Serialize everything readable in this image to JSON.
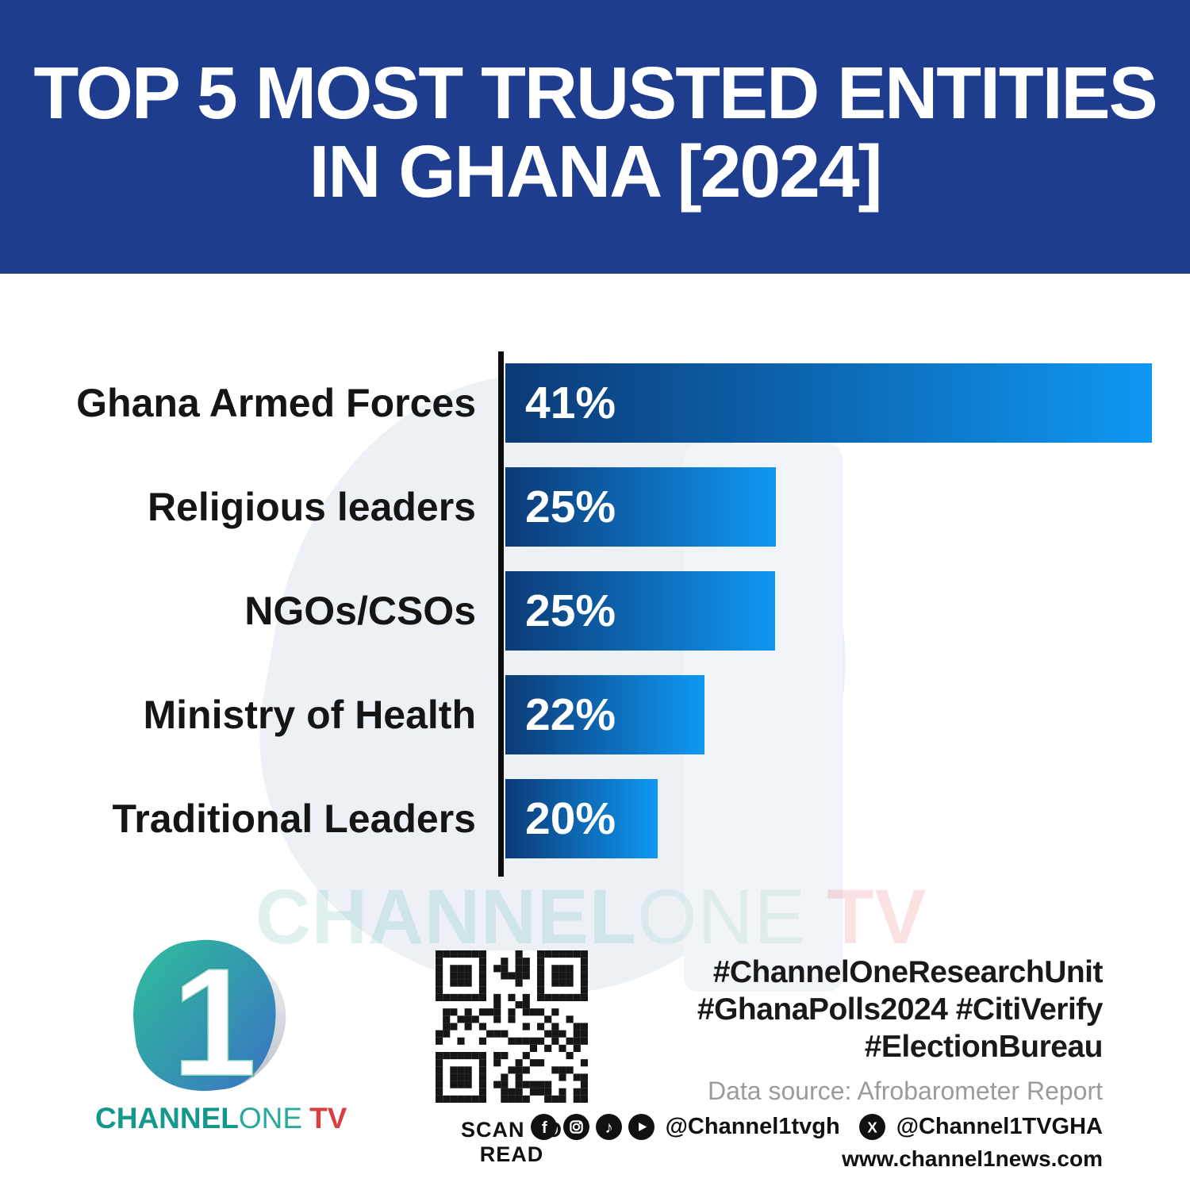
{
  "title": {
    "line1": "TOP 5 MOST TRUSTED ENTITIES",
    "line2": "IN GHANA [2024]"
  },
  "chart_data": {
    "type": "bar",
    "orientation": "horizontal",
    "title": "Top 5 Most Trusted Entities in Ghana [2024]",
    "categories": [
      "Ghana Armed Forces",
      "Religious leaders",
      "NGOs/CSOs",
      "Ministry of Health",
      "Traditional Leaders"
    ],
    "values": [
      41,
      25,
      25,
      22,
      20
    ],
    "value_labels": [
      "41%",
      "25%",
      "25%",
      "22%",
      "20%"
    ],
    "bar_width_fractions": [
      1.0,
      0.418,
      0.417,
      0.308,
      0.236
    ],
    "legend": "none",
    "grid": "off",
    "bar_gradient_dark": "#0C3A76",
    "bar_gradient_light": "#0E98F3"
  },
  "watermark": {
    "channel": "CHANNEL",
    "one": "ONE",
    "tv": "TV"
  },
  "footer": {
    "logo": {
      "digit": "1",
      "wordmark_channel": "CHANNEL",
      "wordmark_one": "ONE",
      "wordmark_tv": "TV"
    },
    "qr_caption": "SCAN TO READ",
    "hashtags": [
      "#ChannelOneResearchUnit",
      "#GhanaPolls2024 #CitiVerify",
      "#ElectionBureau"
    ],
    "data_source": "Data source: Afrobarometer Report",
    "social": {
      "handle_main": "@Channel1tvgh",
      "handle_x": "@Channel1TVGHA"
    },
    "website": "www.channel1news.com"
  },
  "colors": {
    "banner_blue": "#1E3D8E",
    "bar_dark": "#0C3A76",
    "bar_light": "#0E98F3",
    "axis_black": "#0D0D0D",
    "teal": "#13988B",
    "red": "#D84040",
    "source_gray": "#9B9B9B"
  }
}
